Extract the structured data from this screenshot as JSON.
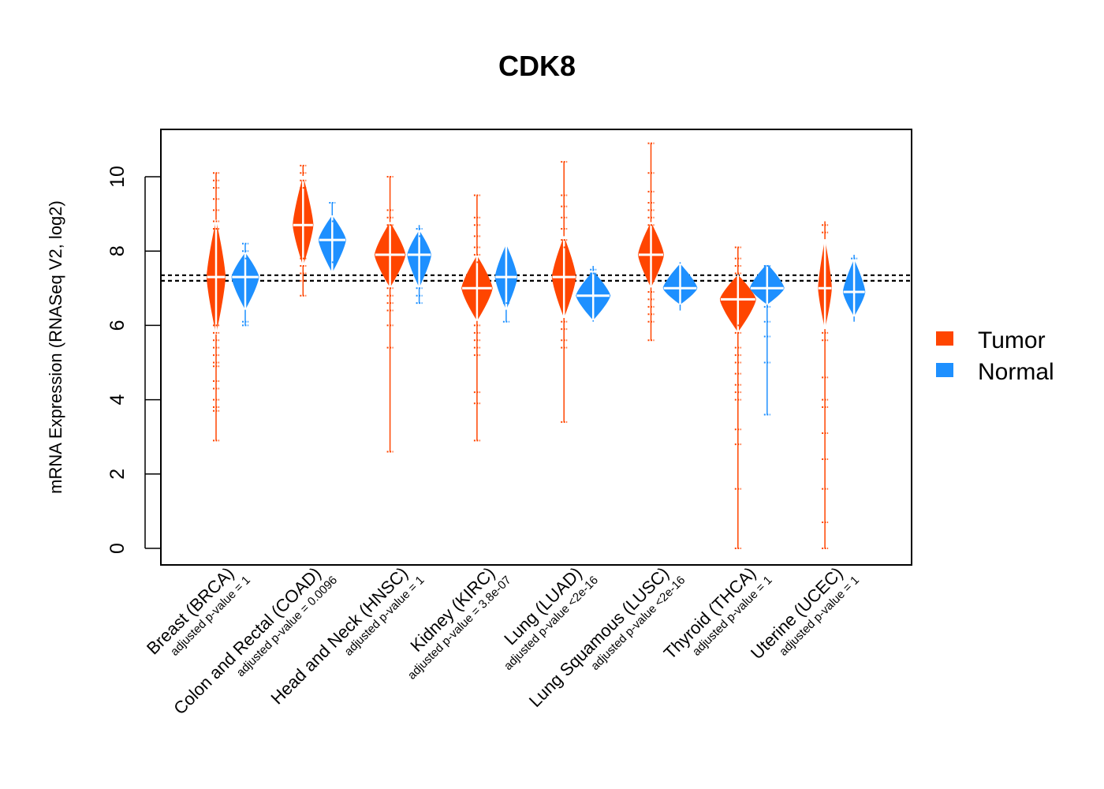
{
  "chart_data": {
    "type": "violin",
    "title": "CDK8",
    "xlabel": "",
    "ylabel": "mRNA Expression (RNASeq V2, log2)",
    "ylim": [
      -0.4,
      11.3
    ],
    "yticks": [
      0,
      2,
      4,
      6,
      8,
      10
    ],
    "grid": false,
    "legend_position": "right",
    "reference_lines": [
      7.35,
      7.2
    ],
    "series": [
      {
        "name": "Tumor",
        "color": "#FF4500"
      },
      {
        "name": "Normal",
        "color": "#1E90FF"
      }
    ],
    "categories": [
      {
        "label": "Breast (BRCA)",
        "pvalue": "adjusted p-value = 1",
        "tumor": {
          "median": 7.3,
          "q1": 6.6,
          "q3": 8.0,
          "min": 2.9,
          "max": 10.1,
          "width": 0.55,
          "outliers": [
            10.1,
            9.9,
            9.7,
            9.4,
            9.1,
            8.8,
            8.6,
            6.0,
            5.8,
            5.6,
            5.4,
            5.2,
            5.0,
            4.9,
            4.5,
            4.3,
            4.0,
            3.8,
            3.7,
            2.9
          ]
        },
        "normal": {
          "median": 7.3,
          "q1": 6.9,
          "q3": 7.6,
          "min": 6.0,
          "max": 8.2,
          "width": 0.8,
          "outliers": [
            8.2,
            8.0,
            7.8,
            6.1,
            6.0
          ]
        }
      },
      {
        "label": "Colon and Rectal (COAD)",
        "pvalue": "adjusted p-value = 0.0096",
        "tumor": {
          "median": 8.7,
          "q1": 8.2,
          "q3": 9.3,
          "min": 6.8,
          "max": 10.3,
          "width": 0.6,
          "outliers": [
            10.3,
            10.1,
            9.9,
            9.7,
            7.8,
            7.6,
            7.4,
            7.2,
            6.8
          ]
        },
        "normal": {
          "median": 8.3,
          "q1": 7.9,
          "q3": 8.6,
          "min": 7.5,
          "max": 9.3,
          "width": 0.8,
          "outliers": [
            9.3,
            8.8,
            7.7
          ]
        }
      },
      {
        "label": "Head and Neck (HNSC)",
        "pvalue": "adjusted p-value = 1",
        "tumor": {
          "median": 7.9,
          "q1": 7.5,
          "q3": 8.3,
          "min": 2.6,
          "max": 10.0,
          "width": 0.9,
          "outliers": [
            10.0,
            9.1,
            8.9,
            8.7,
            7.0,
            6.8,
            6.6,
            6.4,
            6.0,
            5.4,
            2.6
          ]
        },
        "normal": {
          "median": 7.9,
          "q1": 7.5,
          "q3": 8.2,
          "min": 6.6,
          "max": 8.7,
          "width": 0.7,
          "outliers": [
            8.6,
            8.4,
            7.0,
            6.8,
            6.6
          ]
        }
      },
      {
        "label": "Kidney (KIRC)",
        "pvalue": "adjusted p-value = 3.8e-07",
        "tumor": {
          "median": 7.0,
          "q1": 6.6,
          "q3": 7.4,
          "min": 2.9,
          "max": 9.5,
          "width": 0.9,
          "outliers": [
            9.5,
            8.9,
            8.7,
            8.4,
            8.1,
            7.9,
            7.7,
            6.0,
            5.8,
            5.6,
            5.4,
            5.2,
            4.2,
            3.9,
            2.9
          ]
        },
        "normal": {
          "median": 7.3,
          "q1": 6.9,
          "q3": 7.7,
          "min": 6.1,
          "max": 8.1,
          "width": 0.65,
          "outliers": [
            6.6,
            6.1
          ]
        }
      },
      {
        "label": "Lung (LUAD)",
        "pvalue": "adjusted p-value <2e-16",
        "tumor": {
          "median": 7.3,
          "q1": 6.8,
          "q3": 7.8,
          "min": 3.4,
          "max": 10.4,
          "width": 0.7,
          "outliers": [
            10.4,
            9.5,
            9.2,
            8.9,
            8.6,
            8.3,
            8.1,
            6.1,
            5.9,
            5.6,
            5.4,
            3.4
          ]
        },
        "normal": {
          "median": 6.8,
          "q1": 6.5,
          "q3": 7.1,
          "min": 6.1,
          "max": 7.6,
          "width": 1.0,
          "outliers": [
            7.5,
            7.4
          ]
        }
      },
      {
        "label": "Lung Squamous (LUSC)",
        "pvalue": "adjusted p-value <2e-16",
        "tumor": {
          "median": 7.9,
          "q1": 7.5,
          "q3": 8.3,
          "min": 5.6,
          "max": 10.9,
          "width": 0.75,
          "outliers": [
            10.9,
            10.1,
            9.6,
            9.3,
            9.1,
            8.9,
            8.7,
            6.9,
            6.7,
            6.5,
            6.3,
            6.1,
            5.6
          ]
        },
        "normal": {
          "median": 7.0,
          "q1": 6.8,
          "q3": 7.3,
          "min": 6.4,
          "max": 7.7,
          "width": 1.0,
          "outliers": []
        }
      },
      {
        "label": "Thyroid (THCA)",
        "pvalue": "adjusted p-value = 1",
        "tumor": {
          "median": 6.7,
          "q1": 6.3,
          "q3": 7.0,
          "min": 0.0,
          "max": 8.1,
          "width": 1.05,
          "outliers": [
            8.1,
            7.8,
            7.6,
            7.4,
            6.0,
            5.8,
            5.4,
            5.2,
            5.0,
            4.7,
            4.4,
            4.2,
            4.0,
            3.2,
            2.8,
            1.6,
            0.0
          ]
        },
        "normal": {
          "median": 7.0,
          "q1": 6.8,
          "q3": 7.3,
          "min": 3.6,
          "max": 7.6,
          "width": 1.0,
          "outliers": [
            7.6,
            6.5,
            6.1,
            5.7,
            5.0,
            3.6
          ]
        }
      },
      {
        "label": "Uterine (UCEC)",
        "pvalue": "adjusted p-value = 1",
        "tumor": {
          "median": 7.0,
          "q1": 6.5,
          "q3": 7.6,
          "min": 0.0,
          "max": 8.8,
          "width": 0.4,
          "outliers": [
            8.7,
            8.5,
            5.8,
            5.6,
            4.6,
            4.0,
            3.8,
            3.1,
            2.4,
            1.6,
            0.7,
            0.0
          ]
        },
        "normal": {
          "median": 6.9,
          "q1": 6.6,
          "q3": 7.3,
          "min": 6.1,
          "max": 7.9,
          "width": 0.65,
          "outliers": [
            7.8
          ]
        }
      }
    ]
  }
}
